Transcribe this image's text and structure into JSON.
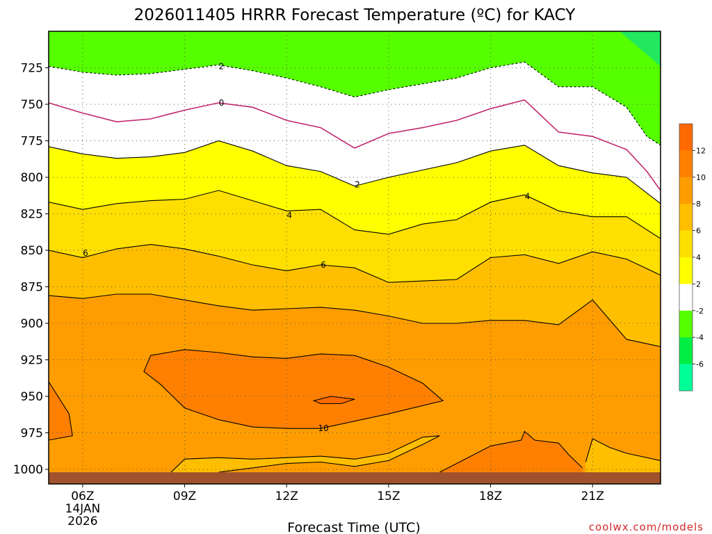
{
  "chart_data": {
    "type": "heatmap",
    "title": "2026011405 HRRR Forecast Temperature (ºC) for KACY",
    "xlabel": "Forecast Time (UTC)",
    "ylabel": "",
    "credit": "coolwx.com/models",
    "x_range_hours": [
      5,
      23
    ],
    "y_range_hPa": [
      700,
      1010
    ],
    "x_ticks": [
      {
        "hour": 6,
        "label": "06Z",
        "sub1": "14JAN",
        "sub2": "2026"
      },
      {
        "hour": 9,
        "label": "09Z",
        "sub1": "",
        "sub2": ""
      },
      {
        "hour": 12,
        "label": "12Z",
        "sub1": "",
        "sub2": ""
      },
      {
        "hour": 15,
        "label": "15Z",
        "sub1": "",
        "sub2": ""
      },
      {
        "hour": 18,
        "label": "18Z",
        "sub1": "",
        "sub2": ""
      },
      {
        "hour": 21,
        "label": "21Z",
        "sub1": "",
        "sub2": ""
      }
    ],
    "y_ticks": [
      725,
      750,
      775,
      800,
      825,
      850,
      875,
      900,
      925,
      950,
      975,
      1000
    ],
    "colorbar": {
      "ticks": [
        12,
        10,
        8,
        6,
        4,
        2,
        -2,
        -4,
        -6
      ],
      "bins": [
        {
          "lo": 12,
          "hi": 14,
          "color": "#ff6a00"
        },
        {
          "lo": 10,
          "hi": 12,
          "color": "#ff8000"
        },
        {
          "lo": 8,
          "hi": 10,
          "color": "#ff9d00"
        },
        {
          "lo": 6,
          "hi": 8,
          "color": "#ffbf00"
        },
        {
          "lo": 4,
          "hi": 6,
          "color": "#ffdf00"
        },
        {
          "lo": 2,
          "hi": 4,
          "color": "#ffff00"
        },
        {
          "lo": -2,
          "hi": 2,
          "color": "#ffffff"
        },
        {
          "lo": -4,
          "hi": -2,
          "color": "#55ff00"
        },
        {
          "lo": -6,
          "hi": -4,
          "color": "#00ee44"
        },
        {
          "lo": -8,
          "hi": -6,
          "color": "#00ff99"
        }
      ]
    },
    "contours": [
      {
        "value": -2,
        "style": "dashed",
        "color": "#000000",
        "points": [
          [
            5.0,
            724
          ],
          [
            6.0,
            728
          ],
          [
            7.0,
            730
          ],
          [
            8.0,
            729
          ],
          [
            9.0,
            726
          ],
          [
            10.0,
            723
          ],
          [
            11.0,
            727
          ],
          [
            12.0,
            732
          ],
          [
            13.0,
            738
          ],
          [
            14.0,
            745
          ],
          [
            15.0,
            740
          ],
          [
            16.0,
            736
          ],
          [
            17.0,
            732
          ],
          [
            18.0,
            725
          ],
          [
            19.0,
            721
          ],
          [
            20.0,
            738
          ],
          [
            21.0,
            738
          ],
          [
            22.0,
            752
          ],
          [
            22.6,
            772
          ],
          [
            23.0,
            778
          ]
        ]
      },
      {
        "value": 0,
        "style": "solid",
        "color": "#c0266e",
        "label_at": [
          10.0,
          749
        ],
        "points": [
          [
            5.0,
            749
          ],
          [
            6.0,
            756
          ],
          [
            7.0,
            762
          ],
          [
            8.0,
            760
          ],
          [
            9.0,
            754
          ],
          [
            10.0,
            749
          ],
          [
            11.0,
            752
          ],
          [
            12.0,
            761
          ],
          [
            13.0,
            766
          ],
          [
            14.0,
            780
          ],
          [
            15.0,
            770
          ],
          [
            16.0,
            766
          ],
          [
            17.0,
            761
          ],
          [
            18.0,
            753
          ],
          [
            19.0,
            747
          ],
          [
            20.0,
            769
          ],
          [
            21.0,
            772
          ],
          [
            22.0,
            781
          ],
          [
            22.6,
            796
          ],
          [
            23.0,
            809
          ]
        ]
      },
      {
        "value": 2,
        "style": "solid",
        "color": "#000000",
        "label_at": [
          14.0,
          805
        ],
        "points": [
          [
            5.0,
            779
          ],
          [
            6.0,
            784
          ],
          [
            7.0,
            787
          ],
          [
            8.0,
            786
          ],
          [
            9.0,
            783
          ],
          [
            10.0,
            775
          ],
          [
            11.0,
            782
          ],
          [
            12.0,
            792
          ],
          [
            13.0,
            796
          ],
          [
            14.0,
            806
          ],
          [
            15.0,
            800
          ],
          [
            16.0,
            795
          ],
          [
            17.0,
            790
          ],
          [
            18.0,
            782
          ],
          [
            19.0,
            778
          ],
          [
            20.0,
            792
          ],
          [
            21.0,
            797
          ],
          [
            22.0,
            800
          ],
          [
            23.0,
            818
          ]
        ]
      },
      {
        "value": 4,
        "style": "solid",
        "color": "#000000",
        "label_at": [
          19.0,
          813
        ],
        "points": [
          [
            5.0,
            817
          ],
          [
            6.0,
            822
          ],
          [
            7.0,
            818
          ],
          [
            8.0,
            816
          ],
          [
            9.0,
            815
          ],
          [
            10.0,
            809
          ],
          [
            11.0,
            816
          ],
          [
            12.0,
            823
          ],
          [
            13.0,
            822
          ],
          [
            14.0,
            836
          ],
          [
            15.0,
            839
          ],
          [
            16.0,
            832
          ],
          [
            17.0,
            829
          ],
          [
            18.0,
            817
          ],
          [
            19.0,
            812
          ],
          [
            20.0,
            823
          ],
          [
            21.0,
            827
          ],
          [
            22.0,
            827
          ],
          [
            23.0,
            842
          ]
        ]
      },
      {
        "value": 6,
        "style": "solid",
        "color": "#000000",
        "label_at": [
          13.0,
          860
        ],
        "points": [
          [
            5.0,
            850
          ],
          [
            6.0,
            855
          ],
          [
            7.0,
            849
          ],
          [
            8.0,
            846
          ],
          [
            9.0,
            849
          ],
          [
            10.0,
            854
          ],
          [
            11.0,
            860
          ],
          [
            12.0,
            864
          ],
          [
            13.0,
            860
          ],
          [
            14.0,
            862
          ],
          [
            15.0,
            872
          ],
          [
            16.0,
            871
          ],
          [
            17.0,
            870
          ],
          [
            18.0,
            855
          ],
          [
            19.0,
            853
          ],
          [
            20.0,
            859
          ],
          [
            21.0,
            851
          ],
          [
            22.0,
            856
          ],
          [
            23.0,
            867
          ]
        ]
      },
      {
        "value": 8,
        "style": "solid",
        "color": "#000000",
        "points": [
          [
            5.0,
            881
          ],
          [
            6.0,
            883
          ],
          [
            7.0,
            880
          ],
          [
            8.0,
            880
          ],
          [
            9.0,
            884
          ],
          [
            10.0,
            888
          ],
          [
            11.0,
            891
          ],
          [
            12.0,
            890
          ],
          [
            13.0,
            889
          ],
          [
            14.0,
            891
          ],
          [
            15.0,
            895
          ],
          [
            16.0,
            900
          ],
          [
            17.0,
            900
          ],
          [
            18.0,
            898
          ],
          [
            19.0,
            898
          ],
          [
            20.0,
            901
          ],
          [
            21.0,
            884
          ],
          [
            22.0,
            911
          ],
          [
            23.0,
            916
          ]
        ]
      }
    ],
    "closed_contours": [
      {
        "value": 10,
        "label_at": [
          13.0,
          972
        ],
        "points": [
          [
            8.0,
            922
          ],
          [
            9.0,
            918
          ],
          [
            10.0,
            920
          ],
          [
            11.0,
            923
          ],
          [
            12.0,
            924
          ],
          [
            13.0,
            921
          ],
          [
            14.0,
            922
          ],
          [
            15.0,
            930
          ],
          [
            16.0,
            941
          ],
          [
            16.6,
            953
          ],
          [
            15.0,
            962
          ],
          [
            14.0,
            967
          ],
          [
            13.0,
            972
          ],
          [
            12.0,
            972
          ],
          [
            11.0,
            971
          ],
          [
            10.0,
            966
          ],
          [
            9.0,
            958
          ],
          [
            8.3,
            942
          ],
          [
            7.8,
            933
          ]
        ]
      },
      {
        "value": 10,
        "points": [
          [
            5.0,
            940
          ],
          [
            5.6,
            962
          ],
          [
            5.7,
            977
          ],
          [
            5.0,
            980
          ]
        ]
      },
      {
        "value": 12,
        "points": [
          [
            12.8,
            953
          ],
          [
            13.3,
            950
          ],
          [
            14.0,
            952
          ],
          [
            13.6,
            955
          ],
          [
            13.0,
            955
          ]
        ]
      }
    ],
    "open_contours": [
      {
        "value": 8,
        "points": [
          [
            8.6,
            1002
          ],
          [
            9.0,
            993
          ],
          [
            10.0,
            992
          ],
          [
            11.0,
            993
          ],
          [
            12.0,
            992
          ],
          [
            13.0,
            991
          ],
          [
            14.0,
            993
          ],
          [
            15.0,
            989
          ],
          [
            16.0,
            978
          ],
          [
            16.5,
            977
          ],
          [
            16.0,
            983
          ],
          [
            15.0,
            994
          ],
          [
            14.0,
            998
          ],
          [
            13.0,
            995
          ],
          [
            12.0,
            996
          ],
          [
            11.0,
            999
          ],
          [
            10.0,
            1002
          ]
        ]
      },
      {
        "value": 10,
        "points": [
          [
            16.5,
            1002
          ],
          [
            17.0,
            996
          ],
          [
            18.0,
            984
          ],
          [
            18.9,
            980
          ],
          [
            19.0,
            974
          ],
          [
            19.3,
            980
          ],
          [
            20.0,
            982
          ],
          [
            20.3,
            990
          ],
          [
            20.7,
            999
          ]
        ]
      },
      {
        "value": 8,
        "points": [
          [
            20.8,
            995
          ],
          [
            21.0,
            979
          ],
          [
            21.5,
            985
          ],
          [
            22.0,
            989
          ],
          [
            23.0,
            994
          ]
        ]
      }
    ],
    "ground_pressure_hPa": 1002
  }
}
